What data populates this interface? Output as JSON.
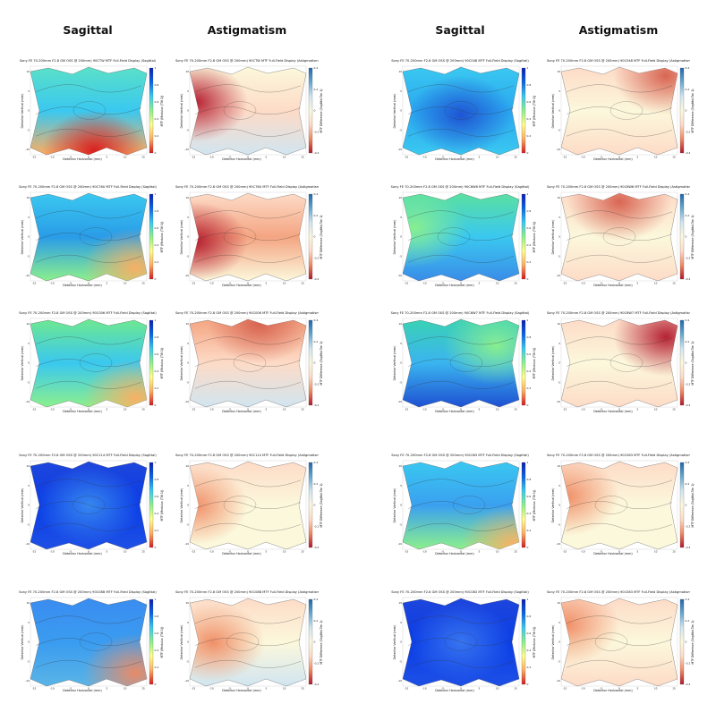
{
  "headings": [
    "Sagittal",
    "Astigmatism",
    "Sagittal",
    "Astigmatism"
  ],
  "colors": {
    "sagittal_scale": [
      "#d7191c",
      "#fdae61",
      "#ffff8c",
      "#8cf08c",
      "#3ac8f0",
      "#0a64e6",
      "#0a1eb4"
    ],
    "astig_scale": [
      "#b2182b",
      "#ef8a62",
      "#fddbc7",
      "#fcf8dc",
      "#d1e5f0",
      "#67a9cf",
      "#2166ac"
    ]
  },
  "chart_data": [
    {
      "type": "heatmap",
      "mode": "sagittal",
      "title": "Sony FE 70-200mm F2.8 GM OSS @ 200mm) 90CTW MTF Full-Field Display (Sagittal)",
      "xlabel": "Detector Horizontal (mm)",
      "ylabel": "Detector Vertical (mm)",
      "colorbar_label": "MTF (Modulus (Tilt 1))",
      "colorbar_ticks": [
        "1",
        "0.8",
        "0.6",
        "0.4",
        "0.2",
        "0"
      ],
      "x_ticks": [
        "-15",
        "-10",
        "-5",
        "0",
        "5",
        "10",
        "15"
      ],
      "y_ticks": [
        "10",
        "5",
        "0",
        "-5",
        "-10"
      ]
    },
    {
      "type": "heatmap",
      "mode": "astig",
      "title": "Sony FE 70-200mm F2.8 GM OSS @ 200mm) 90CTW MTF Full-Field Display (Astigmatism)",
      "xlabel": "Detector Horizontal (mm)",
      "ylabel": "Detector Vertical (mm)",
      "colorbar_label": "MTF Difference (Sagittal-Tan 1)",
      "colorbar_ticks": [
        "0.4",
        "0.2",
        "0",
        "-0.2",
        "-0.4"
      ],
      "x_ticks": [
        "-15",
        "-10",
        "-5",
        "0",
        "5",
        "10",
        "15"
      ],
      "y_ticks": [
        "10",
        "5",
        "0",
        "-5",
        "-10"
      ]
    },
    {
      "type": "heatmap",
      "mode": "sagittal",
      "title": "Sony FE 70-200mm F2.8 GM OSS @ 200mm) 90C048 MTF Full-Field Display (Sagittal)",
      "xlabel": "Detector Horizontal (mm)",
      "ylabel": "Detector Vertical (mm)",
      "colorbar_label": "MTF (Modulus (Tilt 1))",
      "colorbar_ticks": [
        "1",
        "0.8",
        "0.6",
        "0.4",
        "0.2",
        "0"
      ],
      "x_ticks": [
        "-15",
        "-10",
        "-5",
        "0",
        "5",
        "10",
        "15"
      ],
      "y_ticks": [
        "10",
        "5",
        "0",
        "-5",
        "-10"
      ]
    },
    {
      "type": "heatmap",
      "mode": "astig",
      "title": "Sony FE 70-200mm F2.8 GM OSS @ 200mm) 90C048 MTF Full-Field Display (Astigmatism)",
      "xlabel": "Detector Horizontal (mm)",
      "ylabel": "Detector Vertical (mm)",
      "colorbar_label": "MTF Difference (Sagittal-Tan 1)",
      "colorbar_ticks": [
        "0.4",
        "0.2",
        "0",
        "-0.2",
        "-0.4"
      ],
      "x_ticks": [
        "-15",
        "-10",
        "-5",
        "0",
        "5",
        "10",
        "15"
      ],
      "y_ticks": [
        "10",
        "5",
        "0",
        "-5",
        "-10"
      ]
    },
    {
      "type": "heatmap",
      "mode": "sagittal",
      "title": "Sony FE 70-200mm F2.8 GM OSS @ 200mm) 90C78U MTF Full-Field Display (Sagittal)",
      "xlabel": "Detector Horizontal (mm)",
      "ylabel": "Detector Vertical (mm)",
      "colorbar_label": "MTF (Modulus (Tilt 1))",
      "colorbar_ticks": [
        "1",
        "0.8",
        "0.6",
        "0.4",
        "0.2",
        "0"
      ],
      "x_ticks": [
        "-15",
        "-10",
        "-5",
        "0",
        "5",
        "10",
        "15"
      ],
      "y_ticks": [
        "10",
        "5",
        "0",
        "-5",
        "-10"
      ]
    },
    {
      "type": "heatmap",
      "mode": "astig",
      "title": "Sony FE 70-200mm F2.8 GM OSS @ 200mm) 90C78U MTF Full-Field Display (Astigmatism)",
      "xlabel": "Detector Horizontal (mm)",
      "ylabel": "Detector Vertical (mm)",
      "colorbar_label": "MTF Difference (Sagittal-Tan 1)",
      "colorbar_ticks": [
        "0.4",
        "0.2",
        "0",
        "-0.2",
        "-0.4"
      ],
      "x_ticks": [
        "-15",
        "-10",
        "-5",
        "0",
        "5",
        "10",
        "15"
      ],
      "y_ticks": [
        "10",
        "5",
        "0",
        "-5",
        "-10"
      ]
    },
    {
      "type": "heatmap",
      "mode": "sagittal",
      "title": "Sony FE 70-200mm F2.8 GM OSS @ 200mm) 90C6W6 MTF Full-Field Display (Sagittal)",
      "xlabel": "Detector Horizontal (mm)",
      "ylabel": "Detector Vertical (mm)",
      "colorbar_label": "MTF (Modulus (Tilt 1))",
      "colorbar_ticks": [
        "1",
        "0.8",
        "0.6",
        "0.4",
        "0.2",
        "0"
      ],
      "x_ticks": [
        "-15",
        "-10",
        "-5",
        "0",
        "5",
        "10",
        "15"
      ],
      "y_ticks": [
        "10",
        "5",
        "0",
        "-5",
        "-10"
      ]
    },
    {
      "type": "heatmap",
      "mode": "astig",
      "title": "Sony FE 70-200mm F2.8 GM OSS @ 200mm) 90C6W6 MTF Full-Field Display (Astigmatism)",
      "xlabel": "Detector Horizontal (mm)",
      "ylabel": "Detector Vertical (mm)",
      "colorbar_label": "MTF Difference (Sagittal-Tan 1)",
      "colorbar_ticks": [
        "0.4",
        "0.2",
        "0",
        "-0.2",
        "-0.4"
      ],
      "x_ticks": [
        "-15",
        "-10",
        "-5",
        "0",
        "5",
        "10",
        "15"
      ],
      "y_ticks": [
        "10",
        "5",
        "0",
        "-5",
        "-10"
      ]
    },
    {
      "type": "heatmap",
      "mode": "sagittal",
      "title": "Sony FE 70-200mm F2.8 GM OSS @ 200mm) 90C006 MTF Full-Field Display (Sagittal)",
      "xlabel": "Detector Horizontal (mm)",
      "ylabel": "Detector Vertical (mm)",
      "colorbar_label": "MTF (Modulus (Tilt 1))",
      "colorbar_ticks": [
        "1",
        "0.8",
        "0.6",
        "0.4",
        "0.2",
        "0"
      ],
      "x_ticks": [
        "-15",
        "-10",
        "-5",
        "0",
        "5",
        "10",
        "15"
      ],
      "y_ticks": [
        "10",
        "5",
        "0",
        "-5",
        "-10"
      ]
    },
    {
      "type": "heatmap",
      "mode": "astig",
      "title": "Sony FE 70-200mm F2.8 GM OSS @ 200mm) 90C006 MTF Full-Field Display (Astigmatism)",
      "xlabel": "Detector Horizontal (mm)",
      "ylabel": "Detector Vertical (mm)",
      "colorbar_label": "MTF Difference (Sagittal-Tan 1)",
      "colorbar_ticks": [
        "0.4",
        "0.2",
        "0",
        "-0.2",
        "-0.4"
      ],
      "x_ticks": [
        "-15",
        "-10",
        "-5",
        "0",
        "5",
        "10",
        "15"
      ],
      "y_ticks": [
        "10",
        "5",
        "0",
        "-5",
        "-10"
      ]
    },
    {
      "type": "heatmap",
      "mode": "sagittal",
      "title": "Sony FE 70-200mm F2.8 GM OSS @ 200mm) 90C6W7 MTF Full-Field Display (Sagittal)",
      "xlabel": "Detector Horizontal (mm)",
      "ylabel": "Detector Vertical (mm)",
      "colorbar_label": "MTF (Modulus (Tilt 1))",
      "colorbar_ticks": [
        "1",
        "0.8",
        "0.6",
        "0.4",
        "0.2",
        "0"
      ],
      "x_ticks": [
        "-15",
        "-10",
        "-5",
        "0",
        "5",
        "10",
        "15"
      ],
      "y_ticks": [
        "10",
        "5",
        "0",
        "-5",
        "-10"
      ]
    },
    {
      "type": "heatmap",
      "mode": "astig",
      "title": "Sony FE 70-200mm F2.8 GM OSS @ 200mm) 90C6W7 MTF Full-Field Display (Astigmatism)",
      "xlabel": "Detector Horizontal (mm)",
      "ylabel": "Detector Vertical (mm)",
      "colorbar_label": "MTF Difference (Sagittal-Tan 1)",
      "colorbar_ticks": [
        "0.4",
        "0.2",
        "0",
        "-0.2",
        "-0.4"
      ],
      "x_ticks": [
        "-15",
        "-10",
        "-5",
        "0",
        "5",
        "10",
        "15"
      ],
      "y_ticks": [
        "10",
        "5",
        "0",
        "-5",
        "-10"
      ]
    },
    {
      "type": "heatmap",
      "mode": "sagittal",
      "title": "Sony FE 70-200mm F2.8 GM OSS @ 200mm) 90C114 MTF Full-Field Display (Sagittal)",
      "xlabel": "Detector Horizontal (mm)",
      "ylabel": "Detector Vertical (mm)",
      "colorbar_label": "MTF (Modulus (Tilt 1))",
      "colorbar_ticks": [
        "1",
        "0.8",
        "0.6",
        "0.4",
        "0.2",
        "0"
      ],
      "x_ticks": [
        "-15",
        "-10",
        "-5",
        "0",
        "5",
        "10",
        "15"
      ],
      "y_ticks": [
        "10",
        "5",
        "0",
        "-5",
        "-10"
      ]
    },
    {
      "type": "heatmap",
      "mode": "astig",
      "title": "Sony FE 70-200mm F2.8 GM OSS @ 200mm) 90C114 MTF Full-Field Display (Astigmatism)",
      "xlabel": "Detector Horizontal (mm)",
      "ylabel": "Detector Vertical (mm)",
      "colorbar_label": "MTF Difference (Sagittal-Tan 1)",
      "colorbar_ticks": [
        "0.4",
        "0.2",
        "0",
        "-0.2",
        "-0.4"
      ],
      "x_ticks": [
        "-15",
        "-10",
        "-5",
        "0",
        "5",
        "10",
        "15"
      ],
      "y_ticks": [
        "10",
        "5",
        "0",
        "-5",
        "-10"
      ]
    },
    {
      "type": "heatmap",
      "mode": "sagittal",
      "title": "Sony FE 70-200mm F2.8 GM OSS @ 200mm) 90C063 MTF Full-Field Display (Sagittal)",
      "xlabel": "Detector Horizontal (mm)",
      "ylabel": "Detector Vertical (mm)",
      "colorbar_label": "MTF (Modulus (Tilt 1))",
      "colorbar_ticks": [
        "1",
        "0.8",
        "0.6",
        "0.4",
        "0.2",
        "0"
      ],
      "x_ticks": [
        "-15",
        "-10",
        "-5",
        "0",
        "5",
        "10",
        "15"
      ],
      "y_ticks": [
        "10",
        "5",
        "0",
        "-5",
        "-10"
      ]
    },
    {
      "type": "heatmap",
      "mode": "astig",
      "title": "Sony FE 70-200mm F2.8 GM OSS @ 200mm) 90C063 MTF Full-Field Display (Astigmatism)",
      "xlabel": "Detector Horizontal (mm)",
      "ylabel": "Detector Vertical (mm)",
      "colorbar_label": "MTF Difference (Sagittal-Tan 1)",
      "colorbar_ticks": [
        "0.4",
        "0.2",
        "0",
        "-0.2",
        "-0.4"
      ],
      "x_ticks": [
        "-15",
        "-10",
        "-5",
        "0",
        "5",
        "10",
        "15"
      ],
      "y_ticks": [
        "10",
        "5",
        "0",
        "-5",
        "-10"
      ]
    },
    {
      "type": "heatmap",
      "mode": "sagittal",
      "title": "Sony FE 70-200mm F2.8 GM OSS @ 200mm) 90C08B MTF Full-Field Display (Sagittal)",
      "xlabel": "Detector Horizontal (mm)",
      "ylabel": "Detector Vertical (mm)",
      "colorbar_label": "MTF (Modulus (Tilt 1))",
      "colorbar_ticks": [
        "1",
        "0.8",
        "0.6",
        "0.4",
        "0.2",
        "0"
      ],
      "x_ticks": [
        "-15",
        "-10",
        "-5",
        "0",
        "5",
        "10",
        "15"
      ],
      "y_ticks": [
        "10",
        "5",
        "0",
        "-5",
        "-10"
      ]
    },
    {
      "type": "heatmap",
      "mode": "astig",
      "title": "Sony FE 70-200mm F2.8 GM OSS @ 200mm) 90C08B MTF Full-Field Display (Astigmatism)",
      "xlabel": "Detector Horizontal (mm)",
      "ylabel": "Detector Vertical (mm)",
      "colorbar_label": "MTF Difference (Sagittal-Tan 1)",
      "colorbar_ticks": [
        "0.4",
        "0.2",
        "0",
        "-0.2",
        "-0.4"
      ],
      "x_ticks": [
        "-15",
        "-10",
        "-5",
        "0",
        "5",
        "10",
        "15"
      ],
      "y_ticks": [
        "10",
        "5",
        "0",
        "-5",
        "-10"
      ]
    },
    {
      "type": "heatmap",
      "mode": "sagittal",
      "title": "Sony FE 70-200mm F2.8 GM OSS @ 200mm) 90C083 MTF Full-Field Display (Sagittal)",
      "xlabel": "Detector Horizontal (mm)",
      "ylabel": "Detector Vertical (mm)",
      "colorbar_label": "MTF (Modulus (Tilt 1))",
      "colorbar_ticks": [
        "1",
        "0.8",
        "0.6",
        "0.4",
        "0.2",
        "0"
      ],
      "x_ticks": [
        "-15",
        "-10",
        "-5",
        "0",
        "5",
        "10",
        "15"
      ],
      "y_ticks": [
        "10",
        "5",
        "0",
        "-5",
        "-10"
      ]
    },
    {
      "type": "heatmap",
      "mode": "astig",
      "title": "Sony FE 70-200mm F2.8 GM OSS @ 200mm) 90C083 MTF Full-Field Display (Astigmatism)",
      "xlabel": "Detector Horizontal (mm)",
      "ylabel": "Detector Vertical (mm)",
      "colorbar_label": "MTF Difference (Sagittal-Tan 1)",
      "colorbar_ticks": [
        "0.4",
        "0.2",
        "0",
        "-0.2",
        "-0.4"
      ],
      "x_ticks": [
        "-15",
        "-10",
        "-5",
        "0",
        "5",
        "10",
        "15"
      ],
      "y_ticks": [
        "10",
        "5",
        "0",
        "-5",
        "-10"
      ]
    }
  ]
}
